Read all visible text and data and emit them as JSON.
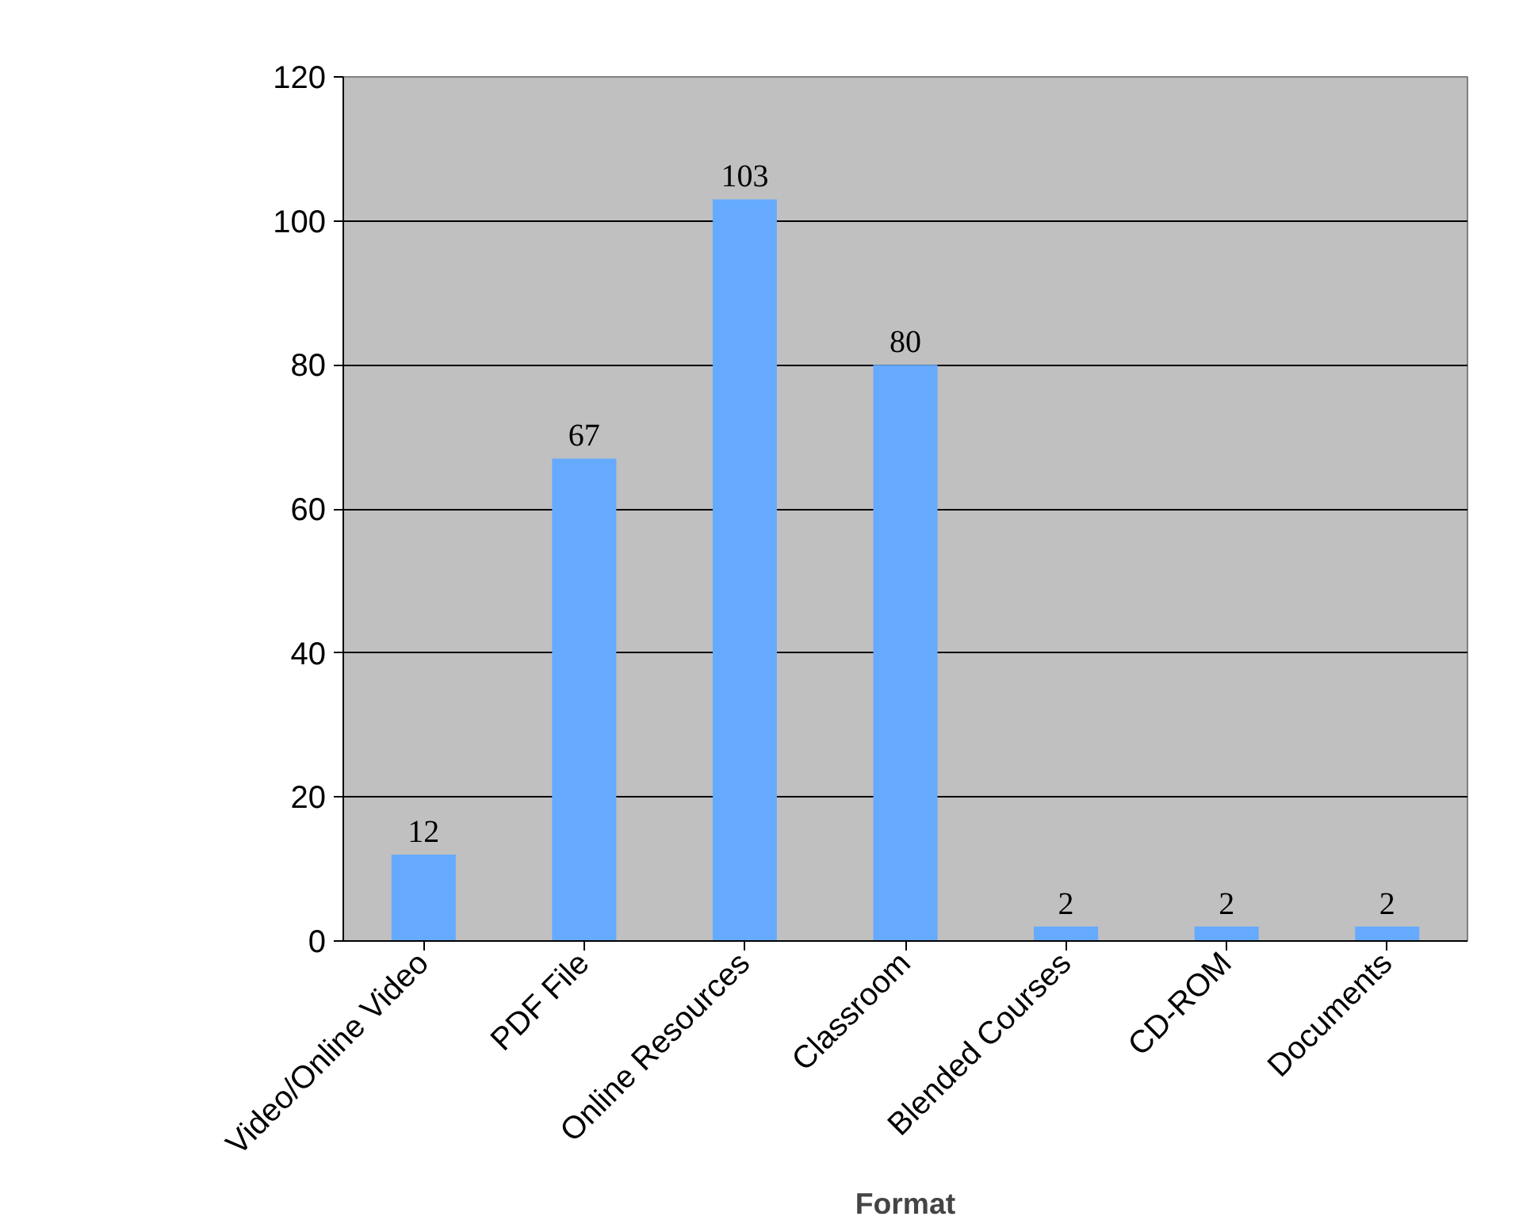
{
  "chart_data": {
    "type": "bar",
    "xlabel": "Format",
    "categories": [
      "Video/Online Video",
      "PDF File",
      "Online Resources",
      "Classroom",
      "Blended Courses",
      "CD-ROM",
      "Documents"
    ],
    "values": [
      12,
      67,
      103,
      80,
      2,
      2,
      2
    ],
    "color": "#66aaff",
    "ylim": [
      0,
      120
    ],
    "yticks": [
      0,
      20,
      40,
      60,
      80,
      100,
      120
    ],
    "grid": "y",
    "data_labels": true
  }
}
